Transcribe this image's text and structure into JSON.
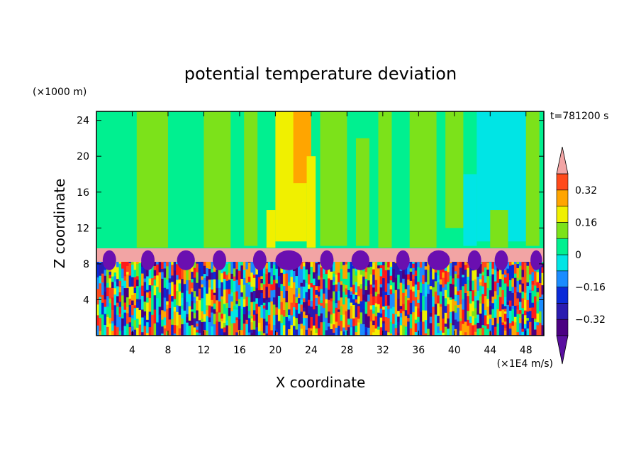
{
  "title": "potential temperature deviation",
  "y_unit": "(×1000 m)",
  "x_unit": "(×1E4 m/s)",
  "time_label": "t=781200 s",
  "xlabel": "X coordinate",
  "ylabel": "Z coordinate",
  "chart_data": {
    "type": "heatmap",
    "title": "potential temperature deviation",
    "xlabel": "X coordinate",
    "ylabel": "Z coordinate",
    "x_unit": "(×1E4 m/s)",
    "y_unit": "(×1000 m)",
    "xlim": [
      0,
      50
    ],
    "ylim": [
      0,
      25
    ],
    "x_ticks": [
      4,
      8,
      12,
      16,
      20,
      24,
      28,
      32,
      36,
      40,
      44,
      48
    ],
    "y_ticks": [
      4,
      8,
      12,
      16,
      20,
      24
    ],
    "time": "t=781200 s",
    "colorbar": {
      "labels": [
        "0.32",
        "0.16",
        "0",
        "−0.16",
        "−0.32"
      ],
      "label_values": [
        0.32,
        0.16,
        0,
        -0.16,
        -0.32
      ],
      "levels": [
        -0.4,
        -0.32,
        -0.24,
        -0.16,
        -0.08,
        0,
        0.08,
        0.16,
        0.24,
        0.32,
        0.4
      ],
      "colors": [
        "#4b0082",
        "#2b1bb0",
        "#0a2ad8",
        "#1a8cff",
        "#00e5e5",
        "#00f090",
        "#7ce21a",
        "#f0f000",
        "#ffa500",
        "#ff4a1a",
        "#ff1a1a"
      ],
      "over_color": "#f2a4a4",
      "under_color": "#5a0fa0"
    },
    "regions": {
      "lower_turbulent_layer": [
        0,
        8
      ],
      "tropopause_band": [
        8.3,
        9.8
      ],
      "upper_layer": [
        9.8,
        25
      ]
    }
  },
  "colors": {
    "upper_background": "#00f090",
    "light_green": "#7ce21a",
    "cyan": "#00e5e5",
    "yellow": "#f0f000",
    "orange": "#ffa500",
    "pink_band": "#f2a4a4",
    "purple": "#6a0fb0"
  }
}
